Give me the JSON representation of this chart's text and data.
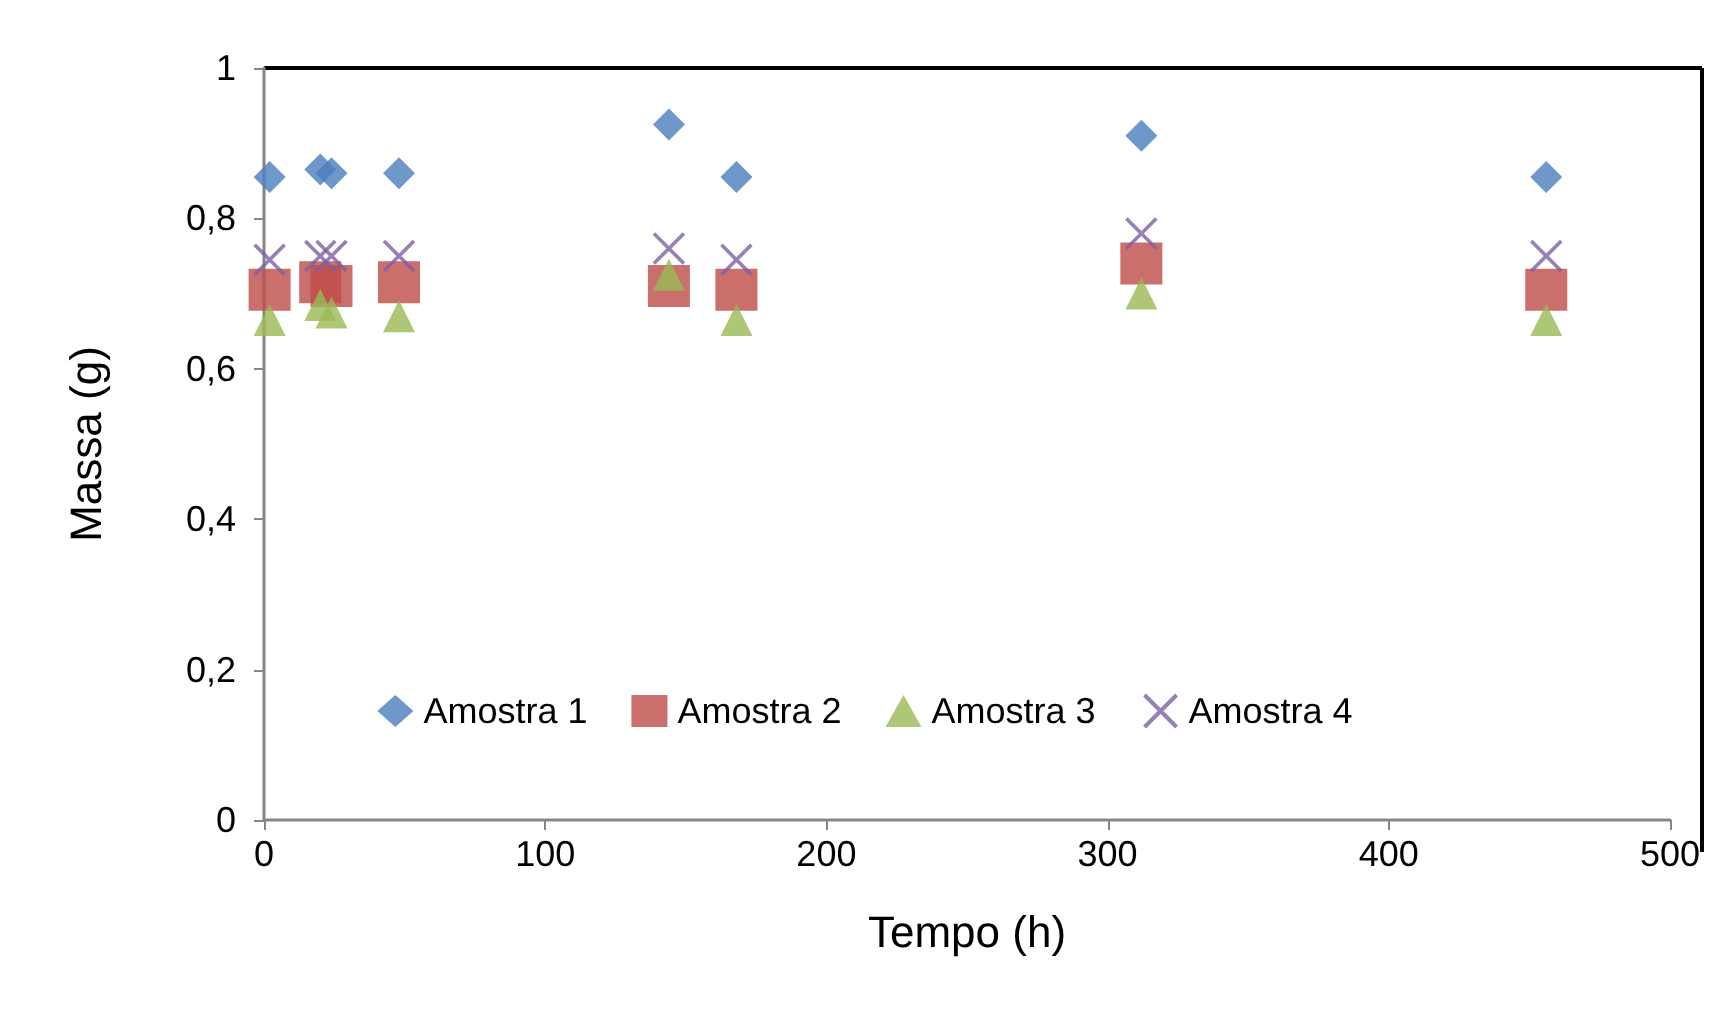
{
  "chart_data": {
    "type": "scatter",
    "xlabel": "Tempo (h)",
    "ylabel": "Massa (g)",
    "x": [
      2,
      20,
      24,
      48,
      144,
      168,
      312,
      456
    ],
    "series": [
      {
        "name": "Amostra 1",
        "color": "#4a7ebb",
        "marker": "diamond",
        "values": [
          0.855,
          0.865,
          0.86,
          0.86,
          0.925,
          0.855,
          0.91,
          0.855
        ]
      },
      {
        "name": "Amostra 2",
        "color": "#be4b48",
        "marker": "square",
        "values": [
          0.705,
          0.715,
          0.71,
          0.715,
          0.71,
          0.705,
          0.74,
          0.705
        ]
      },
      {
        "name": "Amostra 3",
        "color": "#98b954",
        "marker": "triangle",
        "values": [
          0.665,
          0.685,
          0.675,
          0.67,
          0.725,
          0.665,
          0.7,
          0.665
        ]
      },
      {
        "name": "Amostra 4",
        "color": "#7d60a0",
        "marker": "cross",
        "values": [
          0.745,
          0.75,
          0.75,
          0.75,
          0.76,
          0.745,
          0.78,
          0.75
        ]
      }
    ],
    "xlim": [
      0,
      500
    ],
    "xticks": [
      0,
      100,
      200,
      300,
      400,
      500
    ],
    "ylim": [
      0,
      1
    ],
    "yticks": [
      0,
      {
        "value": 0.2,
        "label": "0,2"
      },
      {
        "value": 0.4,
        "label": "0,4"
      },
      {
        "value": 0.6,
        "label": "0,6"
      },
      {
        "value": 0.8,
        "label": "0,8"
      },
      1
    ],
    "grid": false,
    "legend": "bottom"
  }
}
